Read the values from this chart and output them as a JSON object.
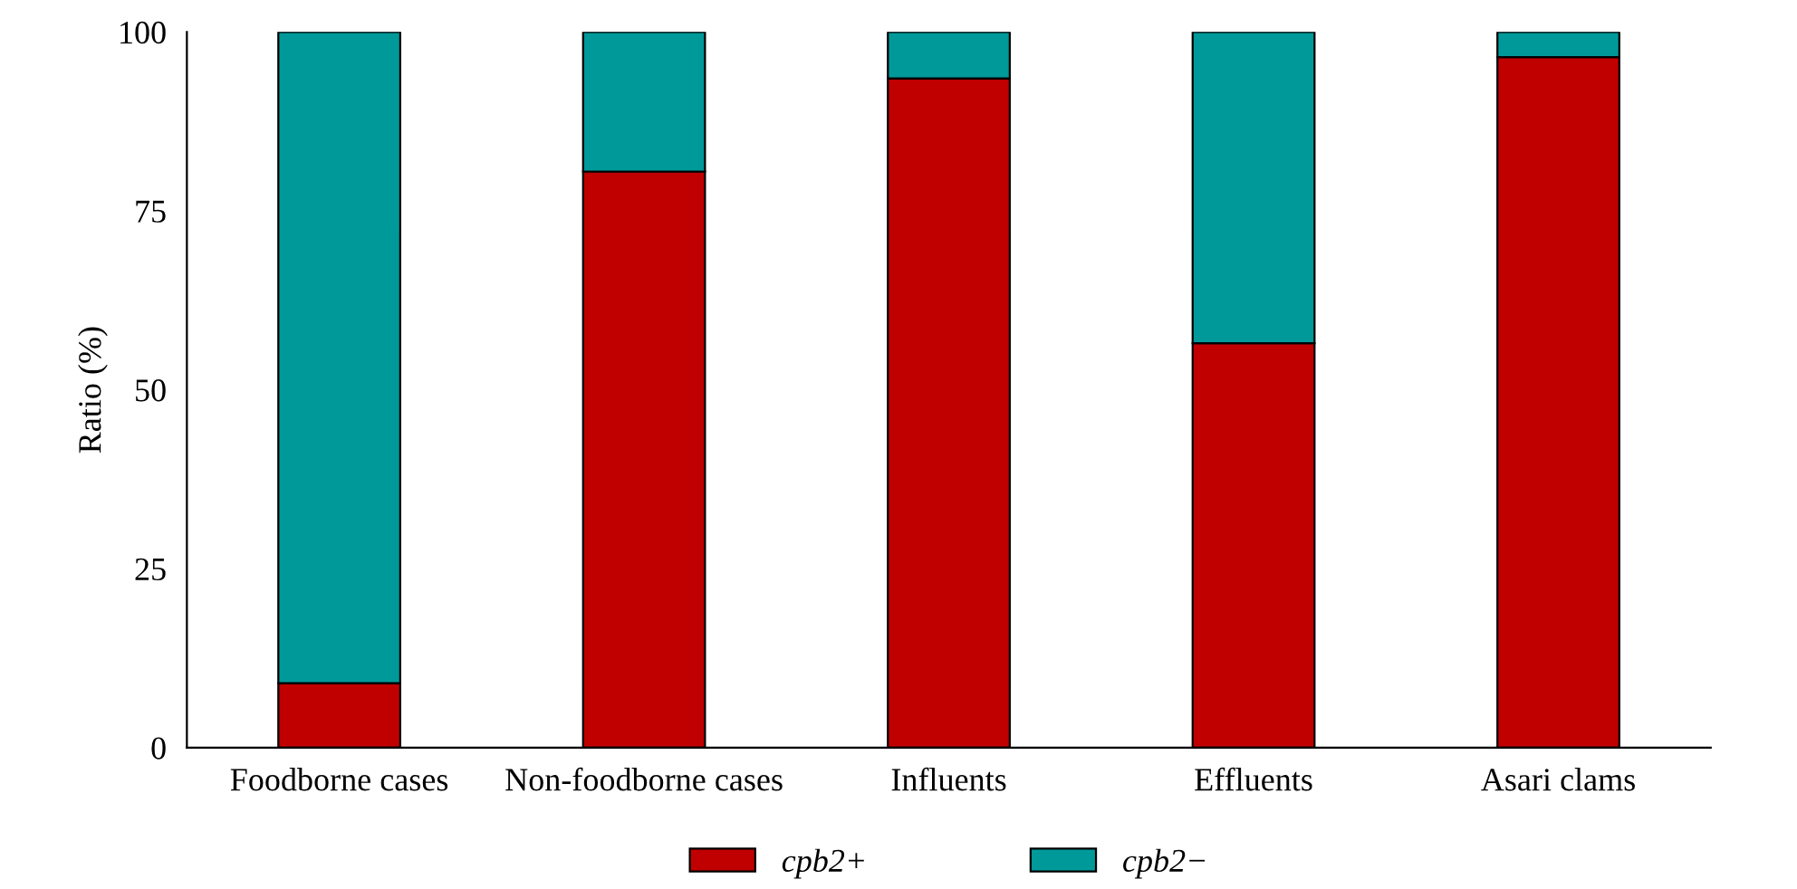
{
  "chart_data": {
    "type": "bar",
    "stacked": true,
    "ylabel": "Ratio (%)",
    "categories": [
      "Foodborne cases",
      "Non-foodborne cases",
      "Influents",
      "Effluents",
      "Asari clams"
    ],
    "series": [
      {
        "name": "cpb2+",
        "color": "#c00000",
        "values": [
          9,
          80.5,
          93.5,
          56.5,
          96.5
        ]
      },
      {
        "name": "cpb2−",
        "color": "#009999",
        "values": [
          91,
          19.5,
          6.5,
          43.5,
          3.5
        ]
      }
    ],
    "ylim": [
      0,
      100
    ],
    "yticks": [
      0,
      25,
      50,
      75,
      100
    ],
    "grid": false,
    "legend": "bottom"
  }
}
